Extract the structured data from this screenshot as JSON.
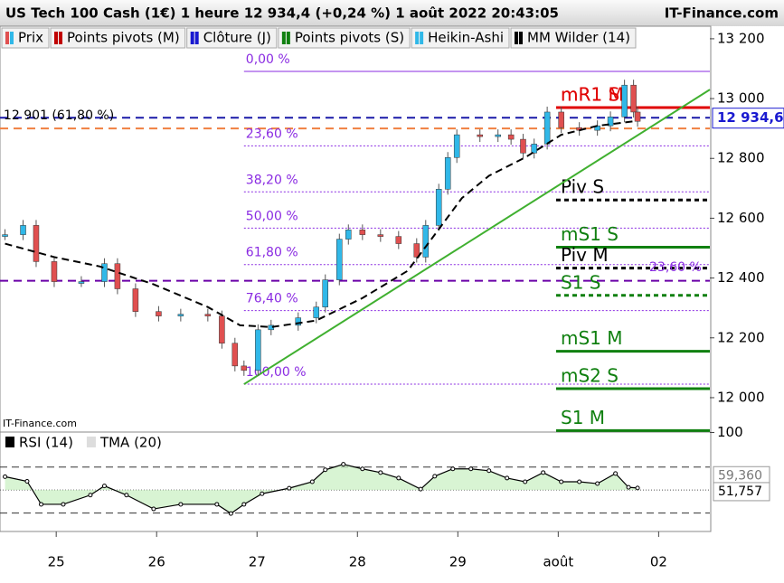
{
  "header": {
    "title": "US Tech 100 Cash (1€) 1 heure 12 934,4 (+0,24 %) 1 août 2022 20:43:05",
    "brand": "IT-Finance.com"
  },
  "legend": [
    {
      "name": "Prix",
      "color": "#e05050"
    },
    {
      "name": "Points pivots (M)",
      "color": "#c00000"
    },
    {
      "name": "Clôture (J)",
      "color": "#1a1ad0"
    },
    {
      "name": "Points pivots (S)",
      "color": "#108010"
    },
    {
      "name": "Heikin-Ashi",
      "color": "#30b8e8"
    },
    {
      "name": "MM Wilder (14)",
      "color": "#000000"
    }
  ],
  "watermark": "IT-Finance.com",
  "chart_data": [
    {
      "type": "candlestick",
      "x": [
        -0.51,
        -0.33,
        -0.2,
        -0.02,
        0.25,
        0.48,
        0.61,
        0.79,
        1.02,
        1.24,
        1.51,
        1.65,
        1.78,
        1.87,
        2.01,
        2.14,
        2.41,
        2.59,
        2.68,
        2.82,
        2.91,
        3.05,
        3.23,
        3.41,
        3.59,
        3.68,
        3.81,
        3.9,
        3.99,
        4.22,
        4.4,
        4.53,
        4.65,
        4.76,
        4.89,
        5.03,
        5.21,
        5.39,
        5.52,
        5.66,
        5.75,
        5.79
      ],
      "values": [
        12545,
        12576,
        12455,
        12388,
        12388,
        12448,
        12364,
        12288,
        12273,
        12279,
        12273,
        12182,
        12106,
        12091,
        12227,
        12242,
        12267,
        12303,
        12394,
        12530,
        12561,
        12545,
        12539,
        12515,
        12470,
        12576,
        12697,
        12803,
        12879,
        12873,
        12879,
        12864,
        12818,
        12848,
        12955,
        12903,
        12894,
        12909,
        12939,
        13045,
        12955,
        12924
      ],
      "up_color": "#30b8e8",
      "down_color": "#e05050",
      "moving_average": {
        "color": "#000000",
        "x": [
          -0.51,
          -0.02,
          0.43,
          0.97,
          1.51,
          1.83,
          2.14,
          2.59,
          3.05,
          3.5,
          3.77,
          4.04,
          4.31,
          4.67,
          5.03,
          5.39,
          5.75
        ],
        "values": [
          12515,
          12470,
          12439,
          12379,
          12303,
          12242,
          12236,
          12258,
          12333,
          12424,
          12545,
          12667,
          12742,
          12803,
          12879,
          12909,
          12924
        ]
      },
      "trendline": {
        "color": "#40b030",
        "x": [
          1.87,
          6.51
        ],
        "values": [
          12045,
          13030
        ]
      },
      "fib_levels": [
        {
          "label": "0,00 %",
          "value": 13091
        },
        {
          "label": "23,60 %",
          "value": 12842
        },
        {
          "label": "38,20 %",
          "value": 12688
        },
        {
          "label": "50,00 %",
          "value": 12567
        },
        {
          "label": "61,80 %",
          "value": 12445
        },
        {
          "label": "76,40 %",
          "value": 12291
        },
        {
          "label": "100,00 %",
          "value": 12045
        }
      ],
      "fib_color": "#8a2be2",
      "pivots": [
        {
          "label": "mR1 M",
          "value": 12970,
          "color": "#e00000",
          "dashed": false
        },
        {
          "label": "mR1 S",
          "value": 12970,
          "color": "#e00000",
          "dashed": false
        },
        {
          "label": "Piv S",
          "value": 12661,
          "color": "#000000",
          "dashed": true
        },
        {
          "label": "mS1 S",
          "value": 12503,
          "color": "#108010",
          "dashed": false
        },
        {
          "label": "Piv M",
          "value": 12433,
          "color": "#000000",
          "dashed": true
        },
        {
          "label": "S1 S",
          "value": 12342,
          "color": "#108010",
          "dashed": true
        },
        {
          "label": "mS1 M",
          "value": 12155,
          "color": "#108010",
          "dashed": false
        },
        {
          "label": "mS2 S",
          "value": 12030,
          "color": "#108010",
          "dashed": false
        },
        {
          "label": "S1 M",
          "value": 11890,
          "color": "#108010",
          "dashed": false
        }
      ],
      "hlines": [
        {
          "value": 12936,
          "color": "#1a1aa8"
        },
        {
          "value": 12900,
          "color": "#f08040"
        },
        {
          "value": 12391,
          "color": "#6a00a8"
        }
      ],
      "annotations": [
        {
          "label": "12 901 (61,80 %)",
          "value": 12901
        },
        {
          "label": "23,60 %",
          "value": 12435
        }
      ],
      "last_price": {
        "label": "12 934,6",
        "value": 12934.6
      },
      "xlim": [
        -0.56,
        6.51
      ],
      "ylim": [
        11885,
        13242
      ],
      "xticks": [
        {
          "value": 0,
          "label": "25"
        },
        {
          "value": 1,
          "label": "26"
        },
        {
          "value": 2,
          "label": "27"
        },
        {
          "value": 3,
          "label": "28"
        },
        {
          "value": 4,
          "label": "29"
        },
        {
          "value": 5,
          "label": "août"
        },
        {
          "value": 6,
          "label": "02"
        }
      ],
      "yticks": [
        {
          "value": 12000,
          "label": "12 000"
        },
        {
          "value": 12200,
          "label": "12 200"
        },
        {
          "value": 12400,
          "label": "12 400"
        },
        {
          "value": 12600,
          "label": "12 600"
        },
        {
          "value": 12800,
          "label": "12 800"
        },
        {
          "value": 13000,
          "label": "13 000"
        },
        {
          "value": 13200,
          "label": "13 200"
        }
      ]
    },
    {
      "type": "line",
      "legend": [
        "RSI (14)",
        "TMA (20)"
      ],
      "x": [
        -0.51,
        -0.29,
        -0.15,
        0.07,
        0.34,
        0.48,
        0.7,
        0.97,
        1.24,
        1.6,
        1.74,
        1.87,
        2.05,
        2.32,
        2.55,
        2.68,
        2.86,
        3.05,
        3.23,
        3.41,
        3.63,
        3.77,
        3.95,
        4.13,
        4.31,
        4.49,
        4.67,
        4.85,
        5.03,
        5.21,
        5.39,
        5.57,
        5.7,
        5.79
      ],
      "values": [
        61.6,
        57.6,
        37.6,
        37.6,
        45.6,
        53.6,
        45.6,
        33.6,
        37.6,
        37.6,
        29.6,
        37.6,
        46.8,
        51.6,
        57.2,
        67.6,
        72.4,
        68.4,
        65.2,
        60.4,
        50.8,
        62,
        68.4,
        68.4,
        66.8,
        60.4,
        57.2,
        65.2,
        57.2,
        57.2,
        55.6,
        64.4,
        52.4,
        51.8
      ],
      "bands": [
        70,
        30
      ],
      "mid": 50,
      "value_labels": [
        {
          "label": "59,360",
          "value": 59.36
        },
        {
          "label": "51,757",
          "value": 51.757
        }
      ],
      "xlim": [
        -0.56,
        6.51
      ],
      "ylim": [
        14,
        100.4
      ],
      "yticks": [
        100
      ]
    }
  ]
}
